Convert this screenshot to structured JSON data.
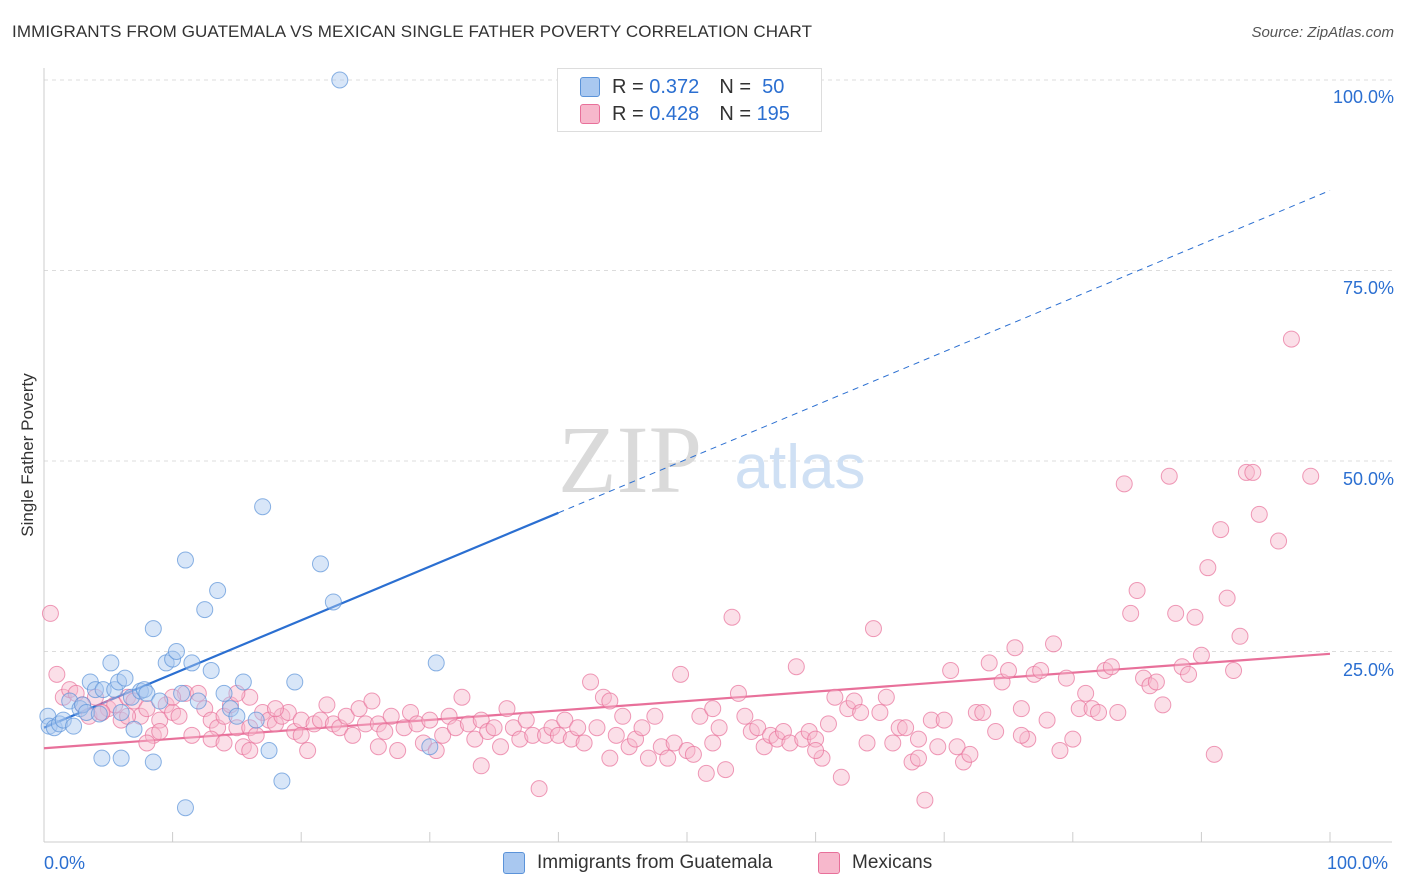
{
  "title": "IMMIGRANTS FROM GUATEMALA VS MEXICAN SINGLE FATHER POVERTY CORRELATION CHART",
  "source": "Source: ZipAtlas.com",
  "watermark": {
    "zip": "ZIP",
    "atlas": "atlas"
  },
  "legend_top": [
    {
      "r_label": "R =",
      "r": "0.372",
      "n_label": "N =",
      "n": "50",
      "color": "#a9c8f0"
    },
    {
      "r_label": "R =",
      "r": "0.428",
      "n_label": "N =",
      "n": "195",
      "color": "#f7b8cc"
    }
  ],
  "chart_data": {
    "type": "scatter",
    "title": "IMMIGRANTS FROM GUATEMALA VS MEXICAN SINGLE FATHER POVERTY CORRELATION CHART",
    "xlabel": "",
    "ylabel": "Single Father Poverty",
    "xlim": [
      0,
      100
    ],
    "ylim": [
      0,
      100
    ],
    "x_tick_labels": [
      "0.0%",
      "100.0%"
    ],
    "y_tick_labels": [
      "25.0%",
      "50.0%",
      "75.0%",
      "100.0%"
    ],
    "y_ticks": [
      25,
      50,
      75,
      100
    ],
    "grid": true,
    "legend_position": "bottom",
    "series": [
      {
        "name": "Immigrants from Guatemala",
        "color": "#5b93d9",
        "fill": "#a9c8f0",
        "trend": {
          "x0": 0,
          "y0": 15,
          "x1": 40,
          "y1": 43.2,
          "dash_to_x": 100,
          "dash_to_y": 85.5
        },
        "points": [
          [
            0.3,
            16.5
          ],
          [
            0.4,
            15.2
          ],
          [
            0.8,
            15.0
          ],
          [
            1.2,
            15.5
          ],
          [
            1.5,
            16.0
          ],
          [
            2.0,
            18.5
          ],
          [
            2.3,
            15.2
          ],
          [
            2.8,
            17.5
          ],
          [
            3.0,
            18.0
          ],
          [
            3.3,
            17.0
          ],
          [
            3.6,
            21.0
          ],
          [
            4.0,
            20.0
          ],
          [
            4.3,
            16.8
          ],
          [
            4.6,
            20.0
          ],
          [
            5.2,
            23.5
          ],
          [
            5.5,
            20.0
          ],
          [
            5.8,
            21.0
          ],
          [
            6.0,
            17.0
          ],
          [
            6.3,
            21.5
          ],
          [
            6.8,
            19.0
          ],
          [
            7.0,
            14.8
          ],
          [
            7.5,
            19.8
          ],
          [
            7.8,
            20.0
          ],
          [
            8.0,
            19.5
          ],
          [
            8.5,
            28.0
          ],
          [
            9.0,
            18.5
          ],
          [
            9.5,
            23.5
          ],
          [
            10.0,
            24.0
          ],
          [
            10.3,
            25.0
          ],
          [
            10.7,
            19.5
          ],
          [
            11.0,
            37.0
          ],
          [
            11.5,
            23.5
          ],
          [
            12.0,
            18.5
          ],
          [
            12.5,
            30.5
          ],
          [
            13.0,
            22.5
          ],
          [
            13.5,
            33.0
          ],
          [
            14.0,
            19.5
          ],
          [
            14.5,
            17.5
          ],
          [
            15.0,
            16.5
          ],
          [
            15.5,
            21.0
          ],
          [
            16.5,
            16.0
          ],
          [
            17.0,
            44.0
          ],
          [
            17.5,
            12.0
          ],
          [
            18.5,
            8.0
          ],
          [
            19.5,
            21.0
          ],
          [
            21.5,
            36.5
          ],
          [
            22.5,
            31.5
          ],
          [
            23.0,
            100.0
          ],
          [
            30.0,
            12.5
          ],
          [
            30.5,
            23.5
          ],
          [
            4.5,
            11.0
          ],
          [
            6.0,
            11.0
          ],
          [
            8.5,
            10.5
          ],
          [
            11.0,
            4.5
          ]
        ]
      },
      {
        "name": "Mexicans",
        "color": "#e8709a",
        "fill": "#f7b8cc",
        "trend": {
          "x0": 0,
          "y0": 12.3,
          "x1": 100,
          "y1": 24.7
        },
        "points": [
          [
            0.5,
            30.0
          ],
          [
            1.0,
            22.0
          ],
          [
            1.5,
            19.0
          ],
          [
            2.0,
            20.0
          ],
          [
            2.5,
            19.5
          ],
          [
            3.0,
            18.0
          ],
          [
            3.5,
            16.5
          ],
          [
            4.0,
            19.0
          ],
          [
            4.5,
            17.0
          ],
          [
            5.0,
            17.5
          ],
          [
            5.5,
            18.0
          ],
          [
            6.0,
            16.0
          ],
          [
            6.5,
            19.0
          ],
          [
            7.0,
            18.5
          ],
          [
            7.5,
            16.5
          ],
          [
            8.0,
            17.5
          ],
          [
            8.5,
            14.0
          ],
          [
            9.0,
            16.0
          ],
          [
            9.5,
            18.0
          ],
          [
            10.0,
            17.0
          ],
          [
            10.5,
            16.5
          ],
          [
            11.0,
            19.5
          ],
          [
            11.5,
            14.0
          ],
          [
            12.0,
            19.5
          ],
          [
            12.5,
            17.5
          ],
          [
            13.0,
            16.0
          ],
          [
            13.5,
            15.0
          ],
          [
            14.0,
            16.5
          ],
          [
            14.5,
            18.0
          ],
          [
            15.0,
            15.0
          ],
          [
            15.5,
            12.5
          ],
          [
            16.0,
            15.0
          ],
          [
            16.5,
            14.0
          ],
          [
            17.0,
            17.0
          ],
          [
            17.5,
            16.0
          ],
          [
            18.0,
            15.5
          ],
          [
            18.5,
            16.5
          ],
          [
            19.0,
            17.0
          ],
          [
            19.5,
            14.5
          ],
          [
            20.0,
            16.0
          ],
          [
            20.5,
            12.0
          ],
          [
            21.0,
            15.5
          ],
          [
            21.5,
            16.0
          ],
          [
            22.0,
            18.0
          ],
          [
            22.5,
            15.5
          ],
          [
            23.0,
            15.0
          ],
          [
            23.5,
            16.5
          ],
          [
            24.0,
            14.0
          ],
          [
            24.5,
            17.5
          ],
          [
            25.0,
            15.5
          ],
          [
            25.5,
            18.5
          ],
          [
            26.0,
            15.5
          ],
          [
            26.5,
            14.5
          ],
          [
            27.0,
            16.5
          ],
          [
            27.5,
            12.0
          ],
          [
            28.0,
            15.0
          ],
          [
            28.5,
            17.0
          ],
          [
            29.0,
            15.5
          ],
          [
            29.5,
            13.0
          ],
          [
            30.0,
            16.0
          ],
          [
            30.5,
            12.0
          ],
          [
            31.0,
            14.0
          ],
          [
            31.5,
            16.5
          ],
          [
            32.0,
            15.0
          ],
          [
            32.5,
            19.0
          ],
          [
            33.0,
            15.5
          ],
          [
            33.5,
            13.5
          ],
          [
            34.0,
            16.0
          ],
          [
            34.5,
            14.5
          ],
          [
            35.0,
            15.0
          ],
          [
            35.5,
            12.5
          ],
          [
            36.0,
            17.5
          ],
          [
            36.5,
            15.0
          ],
          [
            37.0,
            13.5
          ],
          [
            37.5,
            16.0
          ],
          [
            38.0,
            14.0
          ],
          [
            38.5,
            7.0
          ],
          [
            39.0,
            14.0
          ],
          [
            39.5,
            15.0
          ],
          [
            40.0,
            14.0
          ],
          [
            40.5,
            16.0
          ],
          [
            41.0,
            13.5
          ],
          [
            41.5,
            15.0
          ],
          [
            42.0,
            13.0
          ],
          [
            42.5,
            21.0
          ],
          [
            43.0,
            15.0
          ],
          [
            43.5,
            19.0
          ],
          [
            44.0,
            18.5
          ],
          [
            44.5,
            14.0
          ],
          [
            45.0,
            16.5
          ],
          [
            45.5,
            12.5
          ],
          [
            46.0,
            13.5
          ],
          [
            46.5,
            15.0
          ],
          [
            47.0,
            11.0
          ],
          [
            47.5,
            16.5
          ],
          [
            48.0,
            12.5
          ],
          [
            48.5,
            11.0
          ],
          [
            49.0,
            13.0
          ],
          [
            49.5,
            22.0
          ],
          [
            50.0,
            12.0
          ],
          [
            50.5,
            11.5
          ],
          [
            51.0,
            16.5
          ],
          [
            51.5,
            9.0
          ],
          [
            52.0,
            17.5
          ],
          [
            52.5,
            15.0
          ],
          [
            53.0,
            9.5
          ],
          [
            53.5,
            29.5
          ],
          [
            54.0,
            19.5
          ],
          [
            54.5,
            16.5
          ],
          [
            55.0,
            14.5
          ],
          [
            55.5,
            15.0
          ],
          [
            56.0,
            12.5
          ],
          [
            56.5,
            14.0
          ],
          [
            57.0,
            13.5
          ],
          [
            57.5,
            14.5
          ],
          [
            58.0,
            13.0
          ],
          [
            58.5,
            23.0
          ],
          [
            59.0,
            13.5
          ],
          [
            59.5,
            14.5
          ],
          [
            60.0,
            13.5
          ],
          [
            60.5,
            11.0
          ],
          [
            61.0,
            15.5
          ],
          [
            61.5,
            19.0
          ],
          [
            62.0,
            8.5
          ],
          [
            62.5,
            17.5
          ],
          [
            63.0,
            18.5
          ],
          [
            63.5,
            17.0
          ],
          [
            64.0,
            13.0
          ],
          [
            64.5,
            28.0
          ],
          [
            65.0,
            17.0
          ],
          [
            65.5,
            19.0
          ],
          [
            66.0,
            13.0
          ],
          [
            66.5,
            15.0
          ],
          [
            67.0,
            15.0
          ],
          [
            67.5,
            10.5
          ],
          [
            68.0,
            11.0
          ],
          [
            68.5,
            5.5
          ],
          [
            69.0,
            16.0
          ],
          [
            69.5,
            12.5
          ],
          [
            70.0,
            16.0
          ],
          [
            70.5,
            22.5
          ],
          [
            71.0,
            12.5
          ],
          [
            71.5,
            10.5
          ],
          [
            72.0,
            11.5
          ],
          [
            72.5,
            17.0
          ],
          [
            73.0,
            17.0
          ],
          [
            73.5,
            23.5
          ],
          [
            74.0,
            14.5
          ],
          [
            74.5,
            21.0
          ],
          [
            75.0,
            22.5
          ],
          [
            75.5,
            25.5
          ],
          [
            76.0,
            17.5
          ],
          [
            76.5,
            13.5
          ],
          [
            77.0,
            22.0
          ],
          [
            77.5,
            22.5
          ],
          [
            78.0,
            16.0
          ],
          [
            78.5,
            26.0
          ],
          [
            79.0,
            12.0
          ],
          [
            79.5,
            21.5
          ],
          [
            80.0,
            13.5
          ],
          [
            80.5,
            17.5
          ],
          [
            81.0,
            19.5
          ],
          [
            81.5,
            17.5
          ],
          [
            82.0,
            17.0
          ],
          [
            82.5,
            22.5
          ],
          [
            83.0,
            23.0
          ],
          [
            83.5,
            17.0
          ],
          [
            84.0,
            47.0
          ],
          [
            84.5,
            30.0
          ],
          [
            85.0,
            33.0
          ],
          [
            85.5,
            21.5
          ],
          [
            86.0,
            20.5
          ],
          [
            86.5,
            21.0
          ],
          [
            87.0,
            18.0
          ],
          [
            87.5,
            48.0
          ],
          [
            88.0,
            30.0
          ],
          [
            88.5,
            23.0
          ],
          [
            89.0,
            22.0
          ],
          [
            89.5,
            29.5
          ],
          [
            90.0,
            24.5
          ],
          [
            90.5,
            36.0
          ],
          [
            91.0,
            11.5
          ],
          [
            91.5,
            41.0
          ],
          [
            92.0,
            32.0
          ],
          [
            92.5,
            22.5
          ],
          [
            93.0,
            27.0
          ],
          [
            93.5,
            48.5
          ],
          [
            94.0,
            48.5
          ],
          [
            94.5,
            43.0
          ],
          [
            96.0,
            39.5
          ],
          [
            97.0,
            66.0
          ],
          [
            98.5,
            48.0
          ],
          [
            16.0,
            19.0
          ],
          [
            18.0,
            17.5
          ],
          [
            20.0,
            14.0
          ],
          [
            26.0,
            12.5
          ],
          [
            34.0,
            10.0
          ],
          [
            44.0,
            11.0
          ],
          [
            52.0,
            13.0
          ],
          [
            60.0,
            12.0
          ],
          [
            68.0,
            13.5
          ],
          [
            76.0,
            14.0
          ],
          [
            4.5,
            17.0
          ],
          [
            6.5,
            16.5
          ],
          [
            8.0,
            13.0
          ],
          [
            9.0,
            14.5
          ],
          [
            10.0,
            19.0
          ],
          [
            13.0,
            13.5
          ],
          [
            14.0,
            13.0
          ],
          [
            15.0,
            19.5
          ],
          [
            16.0,
            12.0
          ]
        ]
      }
    ]
  },
  "bottom_legend": [
    {
      "label": "Immigrants from Guatemala",
      "color": "#a9c8f0",
      "border": "#5b93d9"
    },
    {
      "label": "Mexicans",
      "color": "#f7b8cc",
      "border": "#e8709a"
    }
  ]
}
